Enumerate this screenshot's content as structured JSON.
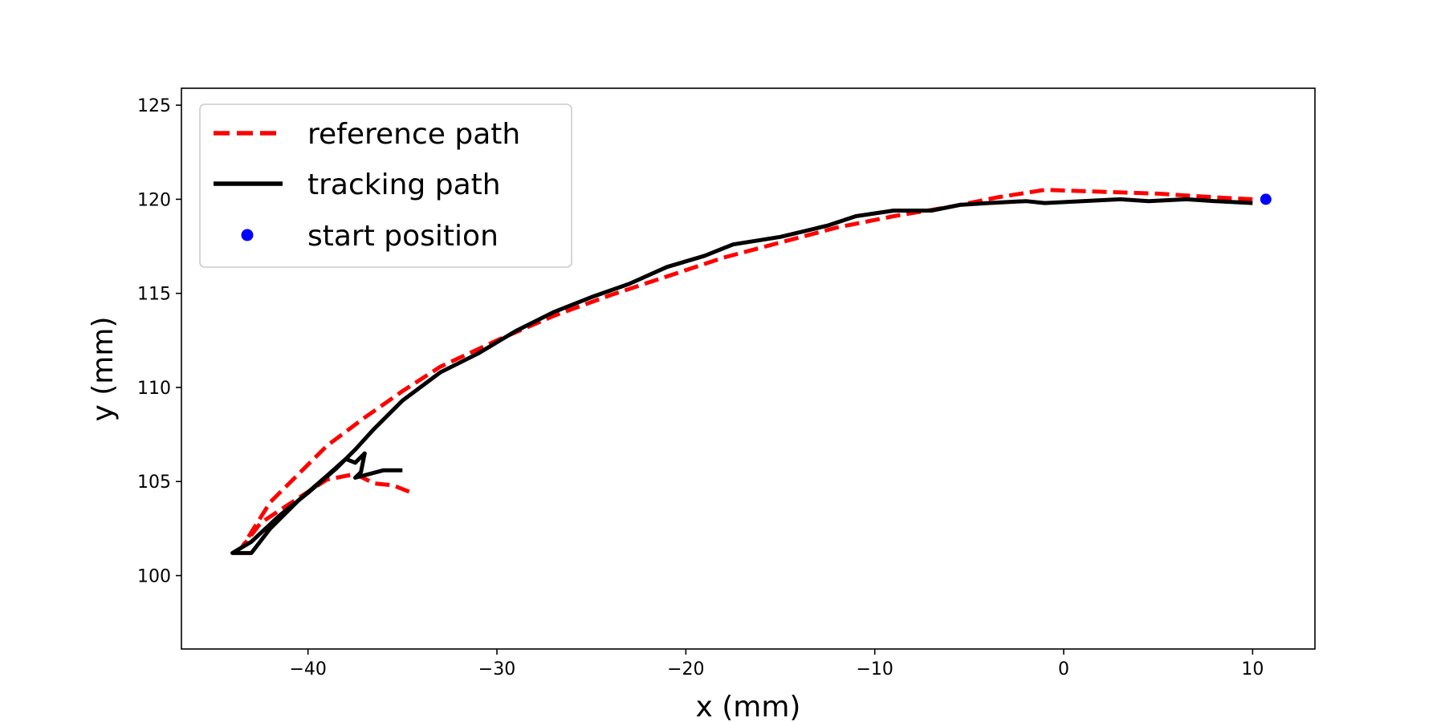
{
  "chart_data": {
    "type": "line",
    "title": "",
    "xlabel": "x (mm)",
    "ylabel": "y (mm)",
    "xlim": [
      -46.7,
      13.3
    ],
    "ylim": [
      96.1,
      125.9
    ],
    "xticks": [
      -40,
      -30,
      -20,
      -10,
      0,
      10
    ],
    "yticks": [
      100,
      105,
      110,
      115,
      120,
      125
    ],
    "xtick_labels": [
      "−40",
      "−30",
      "−20",
      "−10",
      "0",
      "10"
    ],
    "ytick_labels": [
      "100",
      "105",
      "110",
      "115",
      "120",
      "125"
    ],
    "grid": false,
    "legend_position": "upper-left",
    "series": [
      {
        "name": "reference path",
        "style": "dashed",
        "color": "#ff0000",
        "x": [
          10.0,
          8.0,
          5.0,
          2.0,
          -1.0,
          -3.5,
          -6.0,
          -9.0,
          -12.0,
          -15.0,
          -18.0,
          -21.0,
          -24.0,
          -27.0,
          -30.0,
          -33.0,
          -35.0,
          -37.0,
          -39.0,
          -40.5,
          -42.0,
          -43.5,
          -42.5,
          -41.0,
          -39.0,
          -37.5,
          -36.5,
          -35.5,
          -34.5
        ],
        "y": [
          120.0,
          120.1,
          120.3,
          120.4,
          120.5,
          120.1,
          119.6,
          119.1,
          118.5,
          117.7,
          116.9,
          115.9,
          114.9,
          113.8,
          112.5,
          111.1,
          109.8,
          108.4,
          106.9,
          105.4,
          103.9,
          101.5,
          102.8,
          103.8,
          105.1,
          105.4,
          104.9,
          104.8,
          104.4
        ]
      },
      {
        "name": "tracking path",
        "style": "solid",
        "color": "#000000",
        "x": [
          10.0,
          8.0,
          6.5,
          4.5,
          3.0,
          1.0,
          -1.0,
          -2.0,
          -4.0,
          -5.5,
          -7.0,
          -9.0,
          -11.0,
          -12.5,
          -15.0,
          -17.5,
          -19.0,
          -21.0,
          -23.0,
          -25.0,
          -27.0,
          -29.0,
          -31.0,
          -33.0,
          -35.0,
          -36.5,
          -37.5,
          -38.5,
          -40.0,
          -41.5,
          -43.0,
          -44.0,
          -43.0,
          -42.0,
          -40.5,
          -39.0,
          -38.0,
          -37.5,
          -37.0,
          -37.2,
          -37.5,
          -36.0,
          -35.0
        ],
        "y": [
          119.8,
          119.9,
          120.0,
          119.9,
          120.0,
          119.9,
          119.8,
          119.9,
          119.8,
          119.7,
          119.4,
          119.4,
          119.1,
          118.6,
          118.0,
          117.6,
          117.0,
          116.4,
          115.5,
          114.8,
          114.0,
          113.0,
          111.8,
          110.8,
          109.3,
          107.8,
          106.7,
          105.7,
          104.4,
          103.2,
          101.8,
          101.2,
          101.2,
          102.5,
          104.0,
          105.3,
          106.2,
          106.0,
          106.5,
          105.5,
          105.2,
          105.6,
          105.6
        ]
      },
      {
        "name": "start position",
        "style": "marker",
        "color": "#0000ff",
        "x": [
          10.7
        ],
        "y": [
          120.0
        ]
      }
    ]
  }
}
